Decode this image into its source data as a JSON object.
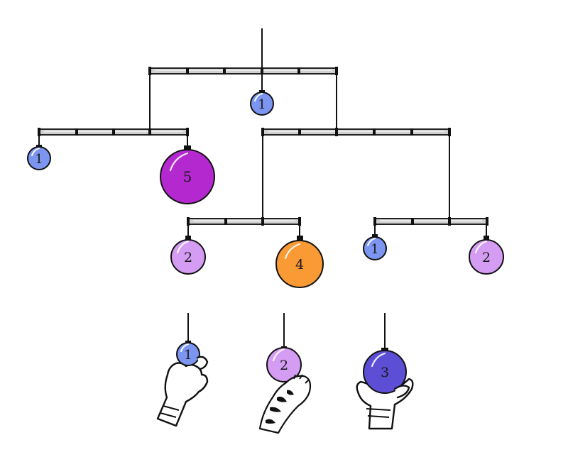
{
  "diagram": {
    "title": "",
    "mobile_weights": {
      "top_center": "1",
      "left_arm_left": "1",
      "left_arm_right": "5",
      "mid_arm_left": "2",
      "mid_arm_right": "4",
      "right_arm_left": "1",
      "right_arm_right": "2"
    },
    "options": {
      "a": "1",
      "b": "2",
      "c": "3"
    },
    "colors": {
      "blue": "#7b95f0",
      "lilac": "#d49cf2",
      "magenta": "#b429cf",
      "orange": "#f99a35",
      "indigo": "#5c4fd6",
      "rod": "#d0d0d0"
    }
  }
}
